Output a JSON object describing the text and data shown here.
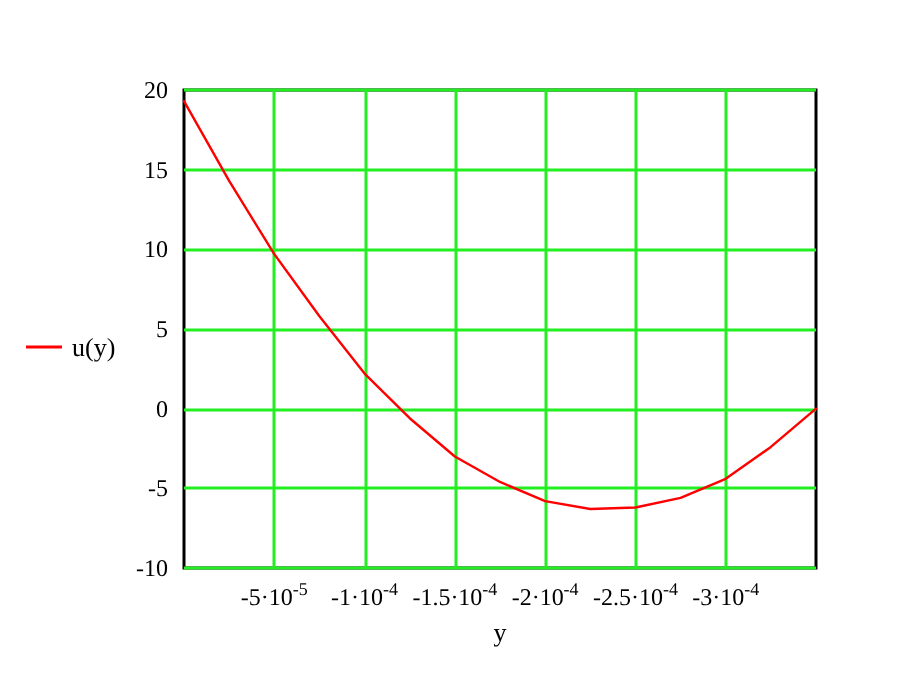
{
  "chart_data": {
    "type": "line",
    "xlabel": "y",
    "x": [
      0,
      -2.5e-05,
      -5e-05,
      -7.5e-05,
      -0.0001,
      -0.000125,
      -0.00015,
      -0.000175,
      -0.0002,
      -0.000225,
      -0.00025,
      -0.000275,
      -0.0003,
      -0.000325,
      -0.00035
    ],
    "series": [
      {
        "name": "u(y)",
        "color": "#ff0000",
        "values": [
          19.3,
          14.3,
          9.7,
          5.8,
          2.2,
          -0.6,
          -3.0,
          -4.6,
          -5.8,
          -6.3,
          -6.2,
          -5.6,
          -4.4,
          -2.4,
          0
        ]
      }
    ],
    "xlim": [
      0,
      -0.00035
    ],
    "xticks": [
      {
        "value": -5e-05,
        "label": "-5·10$^{-5}$"
      },
      {
        "value": -0.0001,
        "label": "-1·10$^{-4}$"
      },
      {
        "value": -0.00015,
        "label": "-1.5·10$^{-4}$"
      },
      {
        "value": -0.0002,
        "label": "-2·10$^{-4}$"
      },
      {
        "value": -0.00025,
        "label": "-2.5·10$^{-4}$"
      },
      {
        "value": -0.0003,
        "label": "-3·10$^{-4}$"
      }
    ],
    "ylim": [
      -10,
      20
    ],
    "yticks": [
      -10,
      -5,
      0,
      5,
      10,
      15,
      20
    ],
    "grid": true,
    "legend": "left",
    "marker": "none",
    "line_style": "solid"
  }
}
